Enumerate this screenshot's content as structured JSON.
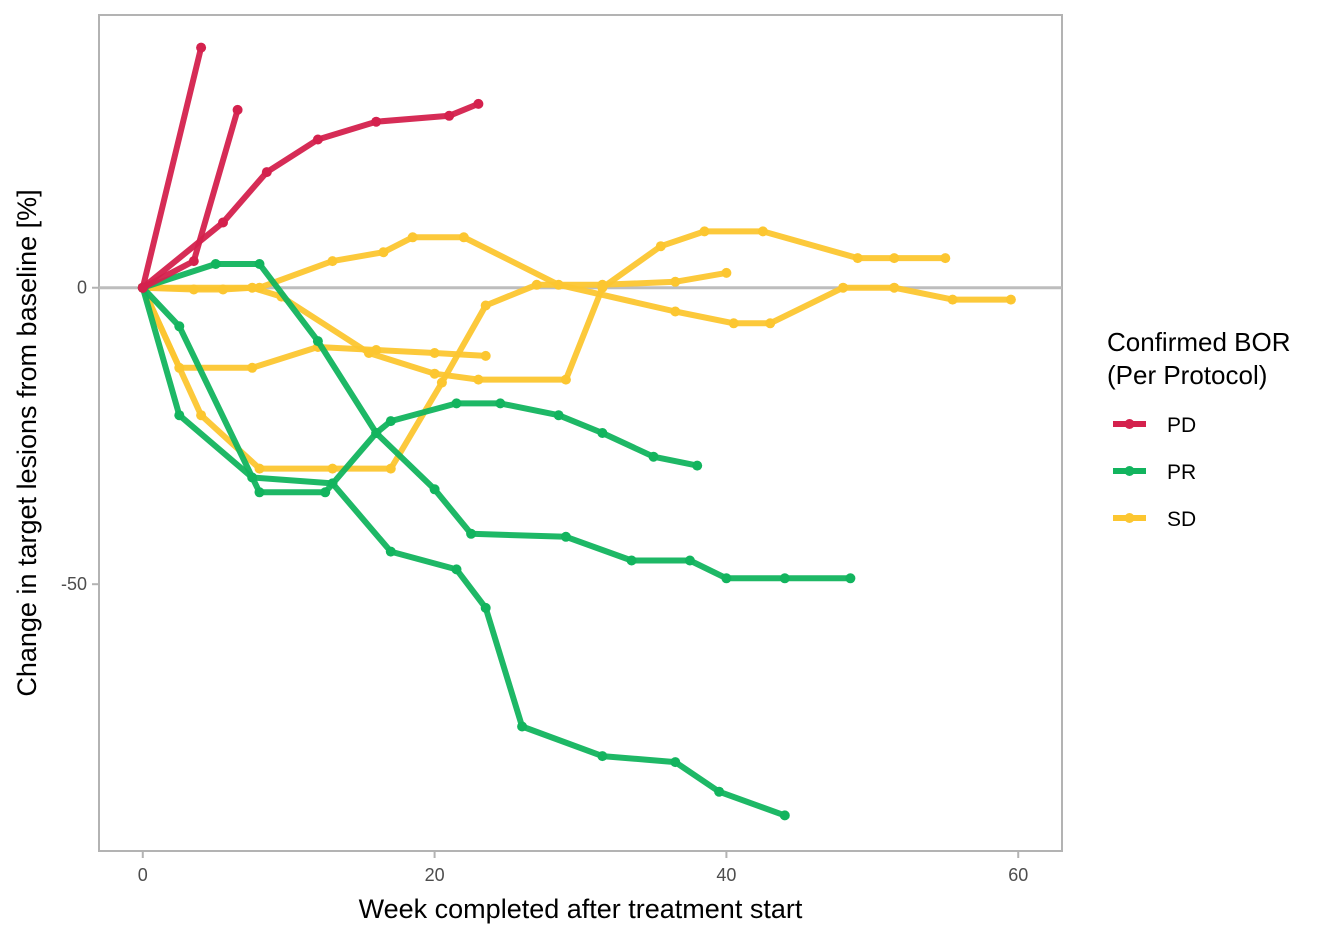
{
  "chart_data": {
    "type": "line",
    "title": "",
    "xlabel": "Week completed after treatment start",
    "ylabel": "Change in target lesions from baseline [%]",
    "xlim": [
      -3,
      63
    ],
    "ylim": [
      -95,
      46
    ],
    "x_ticks": [
      0,
      20,
      40,
      60
    ],
    "x_tick_labels": [
      "0",
      "20",
      "40",
      "60"
    ],
    "y_ticks": [
      0,
      -50
    ],
    "y_tick_labels": [
      "0",
      "-50"
    ],
    "reference_line_y": 0,
    "grid": false,
    "legend": {
      "title_lines": [
        "Confirmed BOR",
        "(Per Protocol)"
      ],
      "placement": "right",
      "entries": [
        {
          "key": "PD",
          "label": "PD",
          "color": "#d4214d"
        },
        {
          "key": "PR",
          "label": "PR",
          "color": "#12b45e"
        },
        {
          "key": "SD",
          "label": "SD",
          "color": "#fcc630"
        }
      ]
    },
    "series": [
      {
        "group": "SD",
        "points": [
          [
            0,
            0
          ],
          [
            2.5,
            -13.5
          ],
          [
            7.5,
            -13.5
          ],
          [
            12,
            -10
          ],
          [
            16,
            -10.5
          ],
          [
            20,
            -11
          ],
          [
            23.5,
            -11.5
          ]
        ]
      },
      {
        "group": "SD",
        "points": [
          [
            0,
            0
          ],
          [
            4,
            -21.5
          ],
          [
            8,
            -30.5
          ],
          [
            13,
            -30.5
          ],
          [
            17,
            -30.5
          ],
          [
            20.5,
            -16
          ],
          [
            23.5,
            -3
          ],
          [
            27,
            0.5
          ],
          [
            31.5,
            0.5
          ],
          [
            36.5,
            1
          ],
          [
            40,
            2.5
          ]
        ]
      },
      {
        "group": "SD",
        "points": [
          [
            0,
            0
          ],
          [
            3.5,
            -0.3
          ],
          [
            5.5,
            -0.3
          ],
          [
            7.5,
            0
          ],
          [
            9.5,
            -1.5
          ],
          [
            15.5,
            -11
          ],
          [
            20,
            -14.5
          ],
          [
            23,
            -15.5
          ],
          [
            29,
            -15.5
          ],
          [
            31.5,
            0
          ],
          [
            35.5,
            7
          ],
          [
            38.5,
            9.5
          ],
          [
            42.5,
            9.5
          ],
          [
            49,
            5
          ],
          [
            51.5,
            5
          ],
          [
            55,
            5
          ]
        ]
      },
      {
        "group": "SD",
        "points": [
          [
            0,
            0
          ],
          [
            8,
            0
          ],
          [
            13,
            4.5
          ],
          [
            16.5,
            6
          ],
          [
            18.5,
            8.5
          ],
          [
            22,
            8.5
          ],
          [
            28.5,
            0.5
          ],
          [
            36.5,
            -4
          ],
          [
            40.5,
            -6
          ],
          [
            43,
            -6
          ],
          [
            48,
            0
          ],
          [
            51.5,
            0
          ],
          [
            55.5,
            -2
          ],
          [
            59.5,
            -2
          ]
        ]
      },
      {
        "group": "PR",
        "points": [
          [
            0,
            0
          ],
          [
            2.5,
            -21.5
          ],
          [
            7.5,
            -32
          ],
          [
            13,
            -33
          ],
          [
            17,
            -44.5
          ],
          [
            21.5,
            -47.5
          ],
          [
            23.5,
            -54
          ],
          [
            26,
            -74
          ],
          [
            31.5,
            -79
          ],
          [
            36.5,
            -80
          ],
          [
            39.5,
            -85
          ],
          [
            44,
            -89
          ]
        ]
      },
      {
        "group": "PR",
        "points": [
          [
            0,
            0
          ],
          [
            2.5,
            -6.5
          ],
          [
            8,
            -34.5
          ],
          [
            12.5,
            -34.5
          ],
          [
            16,
            -24.5
          ],
          [
            17,
            -22.5
          ],
          [
            21.5,
            -19.5
          ],
          [
            24.5,
            -19.5
          ],
          [
            28.5,
            -21.5
          ],
          [
            31.5,
            -24.5
          ],
          [
            35,
            -28.5
          ],
          [
            38,
            -30
          ]
        ]
      },
      {
        "group": "PR",
        "points": [
          [
            0,
            0
          ],
          [
            5,
            4
          ],
          [
            8,
            4
          ],
          [
            12,
            -9
          ],
          [
            16,
            -24.5
          ],
          [
            20,
            -34
          ],
          [
            22.5,
            -41.5
          ],
          [
            29,
            -42
          ],
          [
            33.5,
            -46
          ],
          [
            37.5,
            -46
          ],
          [
            40,
            -49
          ],
          [
            44,
            -49
          ],
          [
            48.5,
            -49
          ]
        ]
      },
      {
        "group": "PD",
        "points": [
          [
            0,
            0
          ],
          [
            4,
            40.5
          ]
        ]
      },
      {
        "group": "PD",
        "points": [
          [
            0,
            0
          ],
          [
            3.5,
            4.5
          ],
          [
            6.5,
            30
          ]
        ]
      },
      {
        "group": "PD",
        "points": [
          [
            0,
            0
          ],
          [
            5.5,
            11
          ],
          [
            8.5,
            19.5
          ],
          [
            12,
            25
          ],
          [
            16,
            28
          ],
          [
            21,
            29
          ],
          [
            23,
            31
          ]
        ]
      }
    ]
  }
}
